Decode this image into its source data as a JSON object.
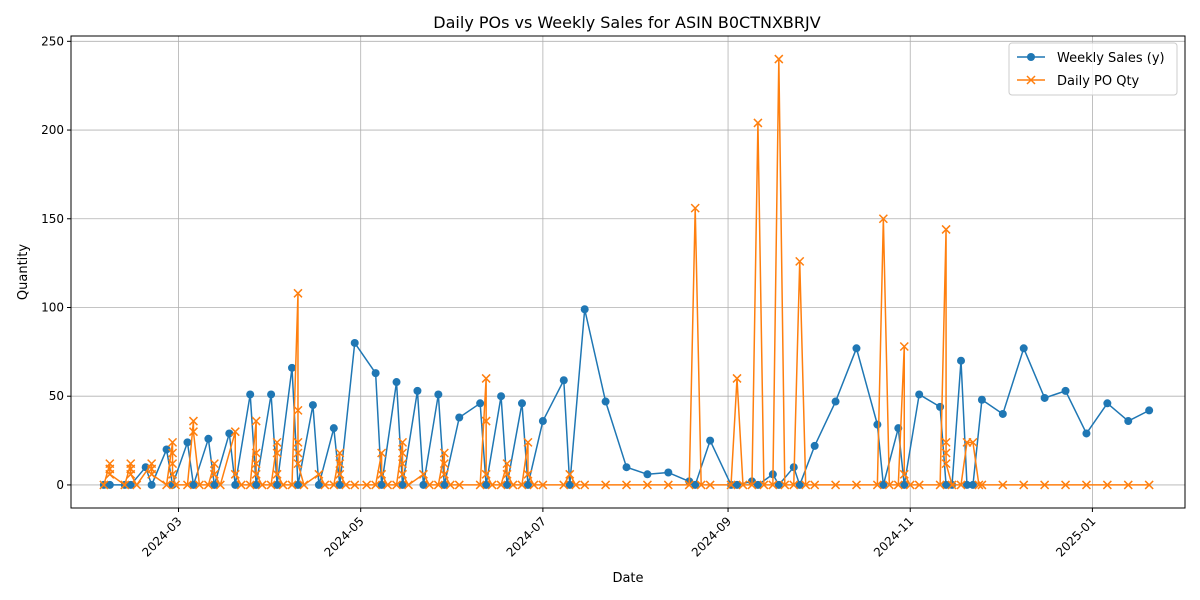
{
  "chart_data": {
    "type": "line",
    "title": "Daily POs vs Weekly Sales for ASIN B0CTNXBRJV",
    "xlabel": "Date",
    "ylabel": "Quantity",
    "xlim": [
      "2024-01-25",
      "2025-02-01"
    ],
    "ylim": [
      -13,
      253
    ],
    "yticks": [
      0,
      50,
      100,
      150,
      200,
      250
    ],
    "xticks": [
      "2024-03-01",
      "2024-05-01",
      "2024-07-01",
      "2024-09-01",
      "2024-11-01",
      "2025-01-01"
    ],
    "xtick_labels": [
      "2024-03",
      "2024-05",
      "2024-07",
      "2024-09",
      "2024-11",
      "2025-01"
    ],
    "grid": true,
    "legend_position": "upper right",
    "series": [
      {
        "name": "Weekly Sales (y)",
        "color": "#1f77b4",
        "marker": "circle",
        "points": [
          [
            "2024-02-05",
            0
          ],
          [
            "2024-02-07",
            0
          ],
          [
            "2024-02-12",
            0
          ],
          [
            "2024-02-14",
            0
          ],
          [
            "2024-02-19",
            10
          ],
          [
            "2024-02-21",
            0
          ],
          [
            "2024-02-26",
            20
          ],
          [
            "2024-02-28",
            0
          ],
          [
            "2024-03-04",
            24
          ],
          [
            "2024-03-06",
            0
          ],
          [
            "2024-03-11",
            26
          ],
          [
            "2024-03-13",
            0
          ],
          [
            "2024-03-18",
            29
          ],
          [
            "2024-03-20",
            0
          ],
          [
            "2024-03-25",
            51
          ],
          [
            "2024-03-27",
            0
          ],
          [
            "2024-04-01",
            51
          ],
          [
            "2024-04-03",
            0
          ],
          [
            "2024-04-08",
            66
          ],
          [
            "2024-04-10",
            0
          ],
          [
            "2024-04-15",
            45
          ],
          [
            "2024-04-17",
            0
          ],
          [
            "2024-04-22",
            32
          ],
          [
            "2024-04-24",
            0
          ],
          [
            "2024-04-29",
            80
          ],
          [
            "2024-05-06",
            63
          ],
          [
            "2024-05-08",
            0
          ],
          [
            "2024-05-13",
            58
          ],
          [
            "2024-05-15",
            0
          ],
          [
            "2024-05-20",
            53
          ],
          [
            "2024-05-22",
            0
          ],
          [
            "2024-05-27",
            51
          ],
          [
            "2024-05-29",
            0
          ],
          [
            "2024-06-03",
            38
          ],
          [
            "2024-06-10",
            46
          ],
          [
            "2024-06-12",
            0
          ],
          [
            "2024-06-17",
            50
          ],
          [
            "2024-06-19",
            0
          ],
          [
            "2024-06-24",
            46
          ],
          [
            "2024-06-26",
            0
          ],
          [
            "2024-07-01",
            36
          ],
          [
            "2024-07-08",
            59
          ],
          [
            "2024-07-10",
            0
          ],
          [
            "2024-07-15",
            99
          ],
          [
            "2024-07-22",
            47
          ],
          [
            "2024-07-29",
            10
          ],
          [
            "2024-08-05",
            6
          ],
          [
            "2024-08-12",
            7
          ],
          [
            "2024-08-19",
            2
          ],
          [
            "2024-08-21",
            0
          ],
          [
            "2024-08-26",
            25
          ],
          [
            "2024-09-02",
            0
          ],
          [
            "2024-09-04",
            0
          ],
          [
            "2024-09-09",
            2
          ],
          [
            "2024-09-11",
            0
          ],
          [
            "2024-09-16",
            6
          ],
          [
            "2024-09-18",
            0
          ],
          [
            "2024-09-23",
            10
          ],
          [
            "2024-09-25",
            0
          ],
          [
            "2024-09-30",
            22
          ],
          [
            "2024-10-07",
            47
          ],
          [
            "2024-10-14",
            77
          ],
          [
            "2024-10-21",
            34
          ],
          [
            "2024-10-23",
            0
          ],
          [
            "2024-10-28",
            32
          ],
          [
            "2024-10-30",
            0
          ],
          [
            "2024-11-04",
            51
          ],
          [
            "2024-11-11",
            44
          ],
          [
            "2024-11-13",
            0
          ],
          [
            "2024-11-15",
            0
          ],
          [
            "2024-11-18",
            70
          ],
          [
            "2024-11-20",
            0
          ],
          [
            "2024-11-22",
            0
          ],
          [
            "2024-11-25",
            48
          ],
          [
            "2024-12-02",
            40
          ],
          [
            "2024-12-09",
            77
          ],
          [
            "2024-12-16",
            49
          ],
          [
            "2024-12-23",
            53
          ],
          [
            "2024-12-30",
            29
          ],
          [
            "2025-01-06",
            46
          ],
          [
            "2025-01-13",
            36
          ],
          [
            "2025-01-20",
            42
          ]
        ]
      },
      {
        "name": "Daily PO Qty",
        "color": "#ff7f0e",
        "marker": "x",
        "points": [
          [
            "2024-02-05",
            0
          ],
          [
            "2024-02-07",
            12
          ],
          [
            "2024-02-07",
            9
          ],
          [
            "2024-02-07",
            6
          ],
          [
            "2024-02-12",
            0
          ],
          [
            "2024-02-14",
            12
          ],
          [
            "2024-02-14",
            9
          ],
          [
            "2024-02-14",
            6
          ],
          [
            "2024-02-16",
            0
          ],
          [
            "2024-02-21",
            12
          ],
          [
            "2024-02-21",
            9
          ],
          [
            "2024-02-21",
            6
          ],
          [
            "2024-02-26",
            0
          ],
          [
            "2024-02-28",
            24
          ],
          [
            "2024-02-28",
            18
          ],
          [
            "2024-02-28",
            12
          ],
          [
            "2024-02-28",
            6
          ],
          [
            "2024-02-29",
            0
          ],
          [
            "2024-03-04",
            0
          ],
          [
            "2024-03-06",
            36
          ],
          [
            "2024-03-06",
            30
          ],
          [
            "2024-03-08",
            0
          ],
          [
            "2024-03-11",
            0
          ],
          [
            "2024-03-13",
            12
          ],
          [
            "2024-03-13",
            6
          ],
          [
            "2024-03-15",
            0
          ],
          [
            "2024-03-20",
            30
          ],
          [
            "2024-03-20",
            6
          ],
          [
            "2024-03-22",
            0
          ],
          [
            "2024-03-25",
            0
          ],
          [
            "2024-03-27",
            36
          ],
          [
            "2024-03-27",
            18
          ],
          [
            "2024-03-27",
            12
          ],
          [
            "2024-03-27",
            6
          ],
          [
            "2024-03-29",
            0
          ],
          [
            "2024-04-01",
            0
          ],
          [
            "2024-04-03",
            24
          ],
          [
            "2024-04-03",
            18
          ],
          [
            "2024-04-03",
            6
          ],
          [
            "2024-04-05",
            0
          ],
          [
            "2024-04-08",
            0
          ],
          [
            "2024-04-10",
            108
          ],
          [
            "2024-04-10",
            42
          ],
          [
            "2024-04-10",
            24
          ],
          [
            "2024-04-10",
            18
          ],
          [
            "2024-04-10",
            12
          ],
          [
            "2024-04-12",
            0
          ],
          [
            "2024-04-17",
            6
          ],
          [
            "2024-04-19",
            0
          ],
          [
            "2024-04-22",
            0
          ],
          [
            "2024-04-24",
            18
          ],
          [
            "2024-04-24",
            12
          ],
          [
            "2024-04-24",
            6
          ],
          [
            "2024-04-26",
            0
          ],
          [
            "2024-04-29",
            0
          ],
          [
            "2024-05-03",
            0
          ],
          [
            "2024-05-06",
            0
          ],
          [
            "2024-05-08",
            18
          ],
          [
            "2024-05-08",
            6
          ],
          [
            "2024-05-10",
            0
          ],
          [
            "2024-05-13",
            0
          ],
          [
            "2024-05-15",
            24
          ],
          [
            "2024-05-15",
            18
          ],
          [
            "2024-05-15",
            12
          ],
          [
            "2024-05-15",
            6
          ],
          [
            "2024-05-17",
            0
          ],
          [
            "2024-05-22",
            6
          ],
          [
            "2024-05-24",
            0
          ],
          [
            "2024-05-27",
            0
          ],
          [
            "2024-05-29",
            18
          ],
          [
            "2024-05-29",
            12
          ],
          [
            "2024-05-29",
            6
          ],
          [
            "2024-05-31",
            0
          ],
          [
            "2024-06-03",
            0
          ],
          [
            "2024-06-10",
            0
          ],
          [
            "2024-06-12",
            60
          ],
          [
            "2024-06-12",
            36
          ],
          [
            "2024-06-12",
            6
          ],
          [
            "2024-06-14",
            0
          ],
          [
            "2024-06-17",
            0
          ],
          [
            "2024-06-19",
            12
          ],
          [
            "2024-06-19",
            6
          ],
          [
            "2024-06-21",
            0
          ],
          [
            "2024-06-24",
            0
          ],
          [
            "2024-06-26",
            24
          ],
          [
            "2024-06-26",
            6
          ],
          [
            "2024-06-28",
            0
          ],
          [
            "2024-07-01",
            0
          ],
          [
            "2024-07-08",
            0
          ],
          [
            "2024-07-10",
            6
          ],
          [
            "2024-07-12",
            0
          ],
          [
            "2024-07-15",
            0
          ],
          [
            "2024-07-22",
            0
          ],
          [
            "2024-07-29",
            0
          ],
          [
            "2024-08-05",
            0
          ],
          [
            "2024-08-12",
            0
          ],
          [
            "2024-08-19",
            0
          ],
          [
            "2024-08-21",
            156
          ],
          [
            "2024-08-23",
            0
          ],
          [
            "2024-08-26",
            0
          ],
          [
            "2024-09-02",
            0
          ],
          [
            "2024-09-04",
            60
          ],
          [
            "2024-09-06",
            0
          ],
          [
            "2024-09-09",
            0
          ],
          [
            "2024-09-11",
            204
          ],
          [
            "2024-09-13",
            0
          ],
          [
            "2024-09-16",
            0
          ],
          [
            "2024-09-18",
            240
          ],
          [
            "2024-09-20",
            0
          ],
          [
            "2024-09-23",
            0
          ],
          [
            "2024-09-25",
            126
          ],
          [
            "2024-09-27",
            0
          ],
          [
            "2024-09-30",
            0
          ],
          [
            "2024-10-07",
            0
          ],
          [
            "2024-10-14",
            0
          ],
          [
            "2024-10-21",
            0
          ],
          [
            "2024-10-23",
            150
          ],
          [
            "2024-10-25",
            0
          ],
          [
            "2024-10-28",
            0
          ],
          [
            "2024-10-30",
            78
          ],
          [
            "2024-10-30",
            6
          ],
          [
            "2024-11-01",
            0
          ],
          [
            "2024-11-04",
            0
          ],
          [
            "2024-11-11",
            0
          ],
          [
            "2024-11-13",
            144
          ],
          [
            "2024-11-13",
            24
          ],
          [
            "2024-11-13",
            18
          ],
          [
            "2024-11-13",
            12
          ],
          [
            "2024-11-15",
            0
          ],
          [
            "2024-11-18",
            0
          ],
          [
            "2024-11-20",
            24
          ],
          [
            "2024-11-22",
            24
          ],
          [
            "2024-11-24",
            0
          ],
          [
            "2024-11-25",
            0
          ],
          [
            "2024-12-02",
            0
          ],
          [
            "2024-12-09",
            0
          ],
          [
            "2024-12-16",
            0
          ],
          [
            "2024-12-23",
            0
          ],
          [
            "2024-12-30",
            0
          ],
          [
            "2025-01-06",
            0
          ],
          [
            "2025-01-13",
            0
          ],
          [
            "2025-01-20",
            0
          ]
        ]
      }
    ]
  }
}
